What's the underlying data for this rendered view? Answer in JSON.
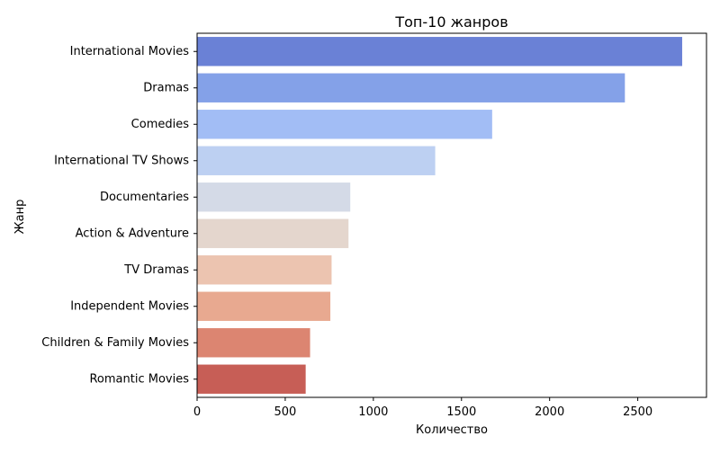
{
  "chart_data": {
    "type": "bar",
    "orientation": "horizontal",
    "title": "Топ-10 жанров",
    "xlabel": "Количество",
    "ylabel": "Жанр",
    "xlim": [
      0,
      2890
    ],
    "xticks": [
      0,
      500,
      1000,
      1500,
      2000,
      2500
    ],
    "grid": false,
    "categories": [
      "International Movies",
      "Dramas",
      "Comedies",
      "International TV Shows",
      "Documentaries",
      "Action & Adventure",
      "TV Dramas",
      "Independent Movies",
      "Children & Family Movies",
      "Romantic Movies"
    ],
    "values": [
      2752,
      2427,
      1674,
      1351,
      869,
      859,
      763,
      756,
      641,
      616
    ],
    "colors": [
      "#6a81d6",
      "#84a1e8",
      "#a2bdf5",
      "#bdd0f2",
      "#d4dae7",
      "#e4d6cd",
      "#ecc4b0",
      "#e8a990",
      "#dc8571",
      "#c75e56"
    ]
  }
}
